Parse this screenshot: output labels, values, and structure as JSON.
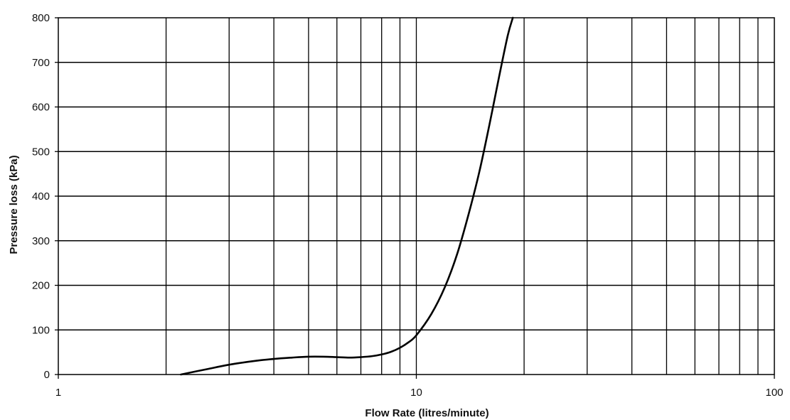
{
  "chart_data": {
    "type": "line",
    "title": "",
    "xlabel": "Flow Rate (litres/minute)",
    "ylabel": "Pressure loss (kPa)",
    "x_scale": "log",
    "xlim": [
      1,
      100
    ],
    "ylim": [
      0,
      800
    ],
    "x_ticks": [
      "1",
      "10",
      "100"
    ],
    "y_ticks": [
      "0",
      "100",
      "200",
      "300",
      "400",
      "500",
      "600",
      "700",
      "800"
    ],
    "grid": true,
    "legend": "none",
    "colors": {
      "line": "#000000",
      "grid": "#000000",
      "background": "#ffffff"
    },
    "series": [
      {
        "x": [
          2.2,
          2.6,
          3,
          3.5,
          4,
          4.5,
          5,
          5.5,
          6,
          6.5,
          7,
          7.5,
          8,
          8.5,
          9,
          9.5,
          10,
          11,
          12,
          13,
          14,
          15,
          16,
          17,
          18,
          18.6
        ],
        "y": [
          0,
          12,
          22,
          30,
          35,
          38,
          40,
          40,
          39,
          38,
          39,
          41,
          45,
          51,
          60,
          72,
          88,
          135,
          195,
          270,
          360,
          455,
          560,
          665,
          760,
          800
        ]
      }
    ]
  }
}
